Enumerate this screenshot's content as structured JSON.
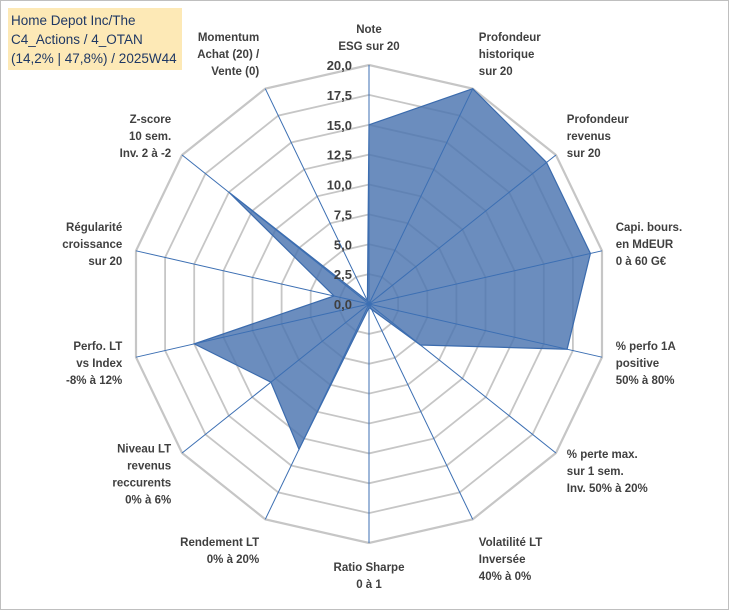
{
  "title": {
    "line1": "Home Depot Inc/The",
    "line2": "C4_Actions / 4_OTAN",
    "line3": "(14,2% | 47,8%) / 2025W44"
  },
  "colors": {
    "fill": "#4a74b0",
    "stroke": "#3b6bad",
    "grid": "#c6c6c6",
    "spoke": "#3c6fb3",
    "title_bg": "#fde9b6",
    "title_text": "#1f3864"
  },
  "chart_data": {
    "type": "radar",
    "title": "Home Depot Inc/The — C4_Actions / 4_OTAN (14,2% | 47,8%) / 2025W44",
    "rmin": 0,
    "rmax": 20,
    "tick_step": 2.5,
    "tick_labels": [
      "0,0",
      "2,5",
      "5,0",
      "7,5",
      "10,0",
      "12,5",
      "15,0",
      "17,5",
      "20,0"
    ],
    "axes": [
      {
        "label": [
          "Note",
          "ESG sur 20"
        ],
        "value": 15.0
      },
      {
        "label": [
          "Profondeur",
          "historique",
          "sur 20"
        ],
        "value": 20.0
      },
      {
        "label": [
          "Profondeur",
          "revenus",
          "sur 20"
        ],
        "value": 19.0
      },
      {
        "label": [
          "Capi. bours.",
          "en MdEUR",
          "0 à 60 G€"
        ],
        "value": 19.0
      },
      {
        "label": [
          "% perfo 1A",
          "positive",
          "50% à 80%"
        ],
        "value": 17.0
      },
      {
        "label": [
          "% perte max.",
          "sur 1 sem.",
          "Inv. 50% à 20%"
        ],
        "value": 5.5
      },
      {
        "label": [
          "Volatilité LT",
          "Inversée",
          "40% à 0%"
        ],
        "value": 0.5
      },
      {
        "label": [
          "Ratio Sharpe",
          "0 à 1"
        ],
        "value": 0.3
      },
      {
        "label": [
          "Rendement LT",
          "0% à 20%"
        ],
        "value": 13.5
      },
      {
        "label": [
          "Niveau LT",
          "revenus",
          "reccurents",
          "0% à 6%"
        ],
        "value": 10.5
      },
      {
        "label": [
          "Perfo. LT",
          "vs Index",
          "-8% à 12%"
        ],
        "value": 15.0
      },
      {
        "label": [
          "Régularité",
          "croissance",
          "sur 20"
        ],
        "value": 3.0
      },
      {
        "label": [
          "Z-score",
          "10 sem.",
          "Inv. 2 à -2"
        ],
        "value": 15.0
      },
      {
        "label": [
          "Momentum",
          "Achat (20) /",
          "Vente (0)"
        ],
        "value": 0.3
      }
    ]
  }
}
